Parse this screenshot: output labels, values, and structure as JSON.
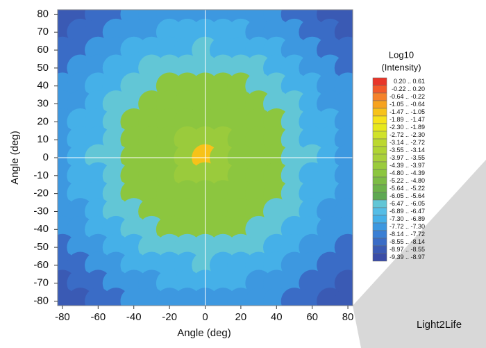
{
  "chart_data": {
    "type": "heatmap",
    "xlabel": "Angle (deg)",
    "ylabel": "Angle (deg)",
    "xlim": [
      -82.7,
      82.7
    ],
    "ylim": [
      -82.5,
      82.5
    ],
    "xticks": [
      -80,
      -60,
      -40,
      -20,
      0,
      20,
      40,
      60,
      80
    ],
    "yticks": [
      80,
      70,
      60,
      50,
      40,
      30,
      20,
      10,
      0,
      -10,
      -20,
      -30,
      -40,
      -50,
      -60,
      -70,
      -80
    ],
    "x": [
      -80,
      -70,
      -60,
      -50,
      -40,
      -30,
      -20,
      -10,
      0,
      10,
      20,
      30,
      40,
      50,
      60,
      70,
      80
    ],
    "y": [
      80,
      70,
      60,
      50,
      40,
      30,
      20,
      10,
      0,
      -10,
      -20,
      -30,
      -40,
      -50,
      -60,
      -70,
      -80
    ],
    "z": [
      [
        -8.8,
        -8.8,
        -8.3,
        -8.3,
        -7.5,
        -7.5,
        -7.5,
        -7.5,
        -7.5,
        -7.5,
        -7.5,
        -7.5,
        -7.5,
        -8.3,
        -8.3,
        -8.8,
        -8.8
      ],
      [
        -8.8,
        -8.3,
        -8.3,
        -7.5,
        -7.5,
        -7.5,
        -6.9,
        -6.9,
        -6.9,
        -6.9,
        -6.9,
        -7.5,
        -7.5,
        -7.5,
        -8.3,
        -8.3,
        -8.8
      ],
      [
        -8.3,
        -8.3,
        -7.5,
        -7.5,
        -6.9,
        -6.9,
        -6.9,
        -6.9,
        -6.2,
        -6.9,
        -6.9,
        -6.9,
        -6.9,
        -7.5,
        -7.5,
        -8.3,
        -8.3
      ],
      [
        -8.3,
        -7.5,
        -7.5,
        -6.9,
        -6.9,
        -6.2,
        -6.2,
        -6.2,
        -6.2,
        -6.2,
        -6.2,
        -6.2,
        -6.9,
        -6.9,
        -7.5,
        -7.5,
        -8.3
      ],
      [
        -7.5,
        -7.5,
        -6.9,
        -6.9,
        -6.2,
        -6.2,
        -4.6,
        -4.6,
        -4.6,
        -4.6,
        -4.6,
        -6.2,
        -6.2,
        -6.9,
        -6.9,
        -7.5,
        -7.5
      ],
      [
        -7.5,
        -7.5,
        -6.9,
        -6.2,
        -6.2,
        -4.6,
        -4.6,
        -4.6,
        -4.6,
        -4.6,
        -4.6,
        -4.6,
        -6.2,
        -6.2,
        -6.9,
        -7.5,
        -7.5
      ],
      [
        -7.5,
        -6.9,
        -6.9,
        -6.2,
        -4.6,
        -4.6,
        -4.6,
        -4.6,
        -4.6,
        -4.6,
        -4.6,
        -4.6,
        -4.6,
        -6.2,
        -6.9,
        -6.9,
        -7.5
      ],
      [
        -7.5,
        -6.9,
        -6.9,
        -6.2,
        -4.6,
        -4.6,
        -4.6,
        -4.0,
        -4.0,
        -4.0,
        -4.6,
        -4.6,
        -4.6,
        -6.2,
        -6.9,
        -6.9,
        -7.5
      ],
      [
        -7.5,
        -6.9,
        -6.2,
        -6.2,
        -4.6,
        -4.6,
        -4.6,
        -4.0,
        -1.3,
        -4.0,
        -4.6,
        -4.6,
        -4.6,
        -6.2,
        -6.2,
        -6.9,
        -7.5
      ],
      [
        -7.5,
        -6.9,
        -6.9,
        -6.2,
        -4.6,
        -4.6,
        -4.6,
        -4.0,
        -4.0,
        -4.0,
        -4.6,
        -4.6,
        -4.6,
        -6.2,
        -6.9,
        -6.9,
        -7.5
      ],
      [
        -7.5,
        -6.9,
        -6.9,
        -6.2,
        -4.6,
        -4.6,
        -4.6,
        -4.6,
        -4.6,
        -4.6,
        -4.6,
        -4.6,
        -4.6,
        -6.2,
        -6.9,
        -6.9,
        -7.5
      ],
      [
        -7.5,
        -7.5,
        -6.9,
        -6.2,
        -6.2,
        -4.6,
        -4.6,
        -4.6,
        -4.6,
        -4.6,
        -4.6,
        -4.6,
        -6.2,
        -6.2,
        -6.9,
        -7.5,
        -7.5
      ],
      [
        -7.5,
        -7.5,
        -6.9,
        -6.9,
        -6.2,
        -6.2,
        -4.6,
        -4.6,
        -4.6,
        -4.6,
        -4.6,
        -6.2,
        -6.2,
        -6.9,
        -6.9,
        -7.5,
        -7.5
      ],
      [
        -8.3,
        -7.5,
        -7.5,
        -6.9,
        -6.9,
        -6.2,
        -6.2,
        -6.2,
        -6.2,
        -6.2,
        -6.2,
        -6.2,
        -6.9,
        -6.9,
        -7.5,
        -7.5,
        -8.3
      ],
      [
        -8.3,
        -8.3,
        -7.5,
        -7.5,
        -6.9,
        -6.9,
        -6.9,
        -6.9,
        -6.2,
        -6.9,
        -6.9,
        -6.9,
        -6.9,
        -7.5,
        -7.5,
        -8.3,
        -8.3
      ],
      [
        -8.8,
        -8.3,
        -8.3,
        -7.5,
        -7.5,
        -7.5,
        -6.9,
        -6.9,
        -6.9,
        -6.9,
        -6.9,
        -7.5,
        -7.5,
        -7.5,
        -8.3,
        -8.3,
        -8.8
      ],
      [
        -8.8,
        -8.8,
        -8.3,
        -8.3,
        -7.5,
        -7.5,
        -7.5,
        -7.5,
        -7.5,
        -7.5,
        -7.5,
        -7.5,
        -7.5,
        -8.3,
        -8.3,
        -8.8,
        -8.8
      ]
    ],
    "colorbar": {
      "title": [
        "Log10",
        "(Intensity)"
      ],
      "bin_edges": [
        0.61,
        0.2,
        -0.22,
        -0.64,
        -1.05,
        -1.47,
        -1.89,
        -2.3,
        -2.72,
        -3.14,
        -3.55,
        -3.97,
        -4.39,
        -4.8,
        -5.22,
        -5.64,
        -6.05,
        -6.47,
        -6.89,
        -7.3,
        -7.72,
        -8.14,
        -8.55,
        -8.97,
        -9.39
      ],
      "labels": [
        "0.20 .. 0.61",
        "-0.22 .. 0.20",
        "-0.64 .. -0.22",
        "-1.05 .. -0.64",
        "-1.47 .. -1.05",
        "-1.89 .. -1.47",
        "-2.30 .. -1.89",
        "-2.72 .. -2.30",
        "-3.14 .. -2.72",
        "-3.55 .. -3.14",
        "-3.97 .. -3.55",
        "-4.39 .. -3.97",
        "-4.80 .. -4.39",
        "-5.22 .. -4.80",
        "-5.64 .. -5.22",
        "-6.05 .. -5.64",
        "-6.47 .. -6.05",
        "-6.89 .. -6.47",
        "-7.30 .. -6.89",
        "-7.72 .. -7.30",
        "-8.14 .. -7.72",
        "-8.55 .. -8.14",
        "-8.97 .. -8.55",
        "-9.39 .. -8.97"
      ],
      "colors": [
        "#e8362a",
        "#f25a2a",
        "#f5822a",
        "#f6a21f",
        "#f7c219",
        "#f6e21a",
        "#e7e81c",
        "#d0e22a",
        "#bcd830",
        "#b0d434",
        "#a9d03a",
        "#9acb3c",
        "#8cc63f",
        "#7cbc45",
        "#6cb24a",
        "#5ea852",
        "#62c6d6",
        "#55bde6",
        "#45b0e8",
        "#3d98e0",
        "#3a7fd4",
        "#3a6cc6",
        "#3a5ab4",
        "#3a4ca6"
      ]
    },
    "watermark": "Light2Life"
  }
}
